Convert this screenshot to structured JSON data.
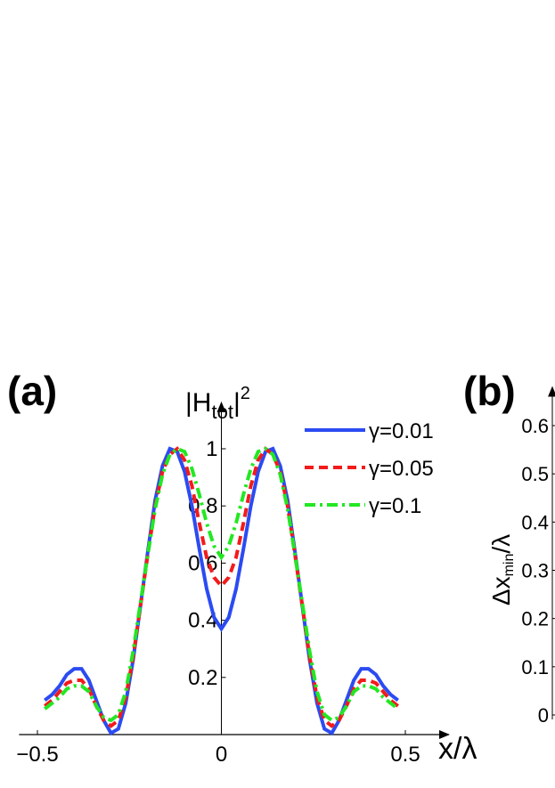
{
  "chart_data": [
    {
      "type": "line",
      "panel_label": "(a)",
      "ylabel_parts": [
        "|H",
        "tot",
        "|",
        "2"
      ],
      "xlabel": "x/λ",
      "x": [
        -0.48,
        -0.46,
        -0.44,
        -0.42,
        -0.4,
        -0.38,
        -0.36,
        -0.34,
        -0.32,
        -0.3,
        -0.28,
        -0.26,
        -0.24,
        -0.22,
        -0.2,
        -0.18,
        -0.16,
        -0.14,
        -0.12,
        -0.1,
        -0.08,
        -0.06,
        -0.04,
        -0.02,
        0,
        0.02,
        0.04,
        0.06,
        0.08,
        0.1,
        0.12,
        0.14,
        0.16,
        0.18,
        0.2,
        0.22,
        0.24,
        0.26,
        0.28,
        0.3,
        0.32,
        0.34,
        0.36,
        0.38,
        0.4,
        0.42,
        0.44,
        0.46,
        0.48
      ],
      "series": [
        {
          "name": "γ=0.01",
          "color": "#2b4bf2",
          "line_style": "solid",
          "values": [
            0.12,
            0.14,
            0.17,
            0.21,
            0.23,
            0.23,
            0.19,
            0.12,
            0.05,
            0.005,
            0.02,
            0.11,
            0.26,
            0.45,
            0.64,
            0.82,
            0.94,
            1.0,
            0.99,
            0.92,
            0.8,
            0.65,
            0.51,
            0.41,
            0.37,
            0.41,
            0.51,
            0.65,
            0.8,
            0.92,
            0.99,
            1.0,
            0.94,
            0.82,
            0.64,
            0.45,
            0.26,
            0.11,
            0.02,
            0.005,
            0.05,
            0.12,
            0.19,
            0.23,
            0.23,
            0.21,
            0.17,
            0.14,
            0.12
          ]
        },
        {
          "name": "γ=0.05",
          "color": "#f21b1b",
          "line_style": "dashed",
          "values": [
            0.1,
            0.12,
            0.15,
            0.18,
            0.19,
            0.19,
            0.16,
            0.1,
            0.05,
            0.03,
            0.05,
            0.13,
            0.27,
            0.45,
            0.63,
            0.8,
            0.92,
            0.98,
            1.0,
            0.96,
            0.87,
            0.74,
            0.62,
            0.55,
            0.52,
            0.55,
            0.62,
            0.74,
            0.87,
            0.96,
            1.0,
            0.98,
            0.92,
            0.8,
            0.63,
            0.45,
            0.27,
            0.13,
            0.05,
            0.03,
            0.05,
            0.1,
            0.16,
            0.19,
            0.19,
            0.18,
            0.15,
            0.12,
            0.1
          ]
        },
        {
          "name": "γ=0.1",
          "color": "#22e822",
          "line_style": "dashdot",
          "values": [
            0.09,
            0.11,
            0.13,
            0.16,
            0.17,
            0.17,
            0.15,
            0.1,
            0.06,
            0.05,
            0.07,
            0.15,
            0.29,
            0.46,
            0.63,
            0.79,
            0.91,
            0.98,
            1.0,
            0.99,
            0.93,
            0.84,
            0.74,
            0.66,
            0.62,
            0.66,
            0.74,
            0.84,
            0.93,
            0.99,
            1.0,
            0.98,
            0.91,
            0.79,
            0.63,
            0.46,
            0.29,
            0.15,
            0.07,
            0.05,
            0.06,
            0.1,
            0.15,
            0.17,
            0.17,
            0.16,
            0.13,
            0.11,
            0.09
          ]
        }
      ],
      "xlim": [
        -0.55,
        0.57
      ],
      "ylim": [
        0,
        1.1
      ],
      "xticks": [
        {
          "value": -0.5,
          "label": "−0.5"
        },
        0,
        0.5
      ],
      "yticks": [
        0.2,
        0.4,
        0.6,
        0.8,
        1
      ]
    },
    {
      "type": "scatter",
      "panel_label": "(b)",
      "ylabel_parts": [
        "Δx",
        "min",
        "/λ"
      ],
      "ylim": [
        0,
        0.68
      ],
      "yticks": [
        0,
        0.1,
        0.2,
        0.3,
        0.4,
        0.5,
        0.6
      ]
    }
  ]
}
